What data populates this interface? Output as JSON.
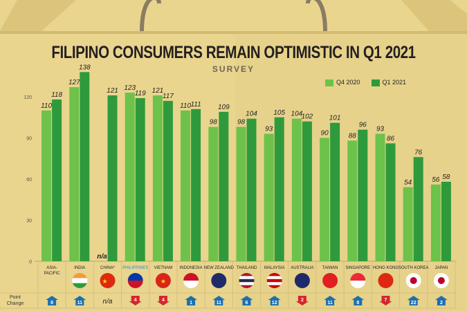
{
  "title": "FILIPINO CONSUMERS REMAIN OPTIMISTIC IN Q1 2021",
  "subtitle": "SURVEY",
  "point_change_label": "Point Change",
  "colors": {
    "q4_2020": "#6cc24a",
    "q1_2021": "#2e9a3c",
    "up": "#1e6fae",
    "down": "#d7262b",
    "background": "#e9d58e",
    "highlight_label": "#2a8fc9"
  },
  "chart_data": {
    "type": "bar",
    "title": "FILIPINO CONSUMERS REMAIN OPTIMISTIC IN Q1 2021",
    "subtitle": "SURVEY",
    "categories": [
      "ASIA-PACIFIC",
      "INDIA",
      "CHINA*",
      "PHILIPPINES",
      "VIETNAM",
      "INDONESIA",
      "NEW ZEALAND",
      "THAILAND",
      "MALAYSIA",
      "AUSTRALIA",
      "TAIWAN",
      "SINGAPORE",
      "HONG KONG",
      "SOUTH KOREA",
      "JAPAN"
    ],
    "series": [
      {
        "name": "Q4 2020",
        "values": [
          110,
          127,
          null,
          123,
          121,
          110,
          98,
          98,
          93,
          104,
          90,
          88,
          93,
          54,
          56
        ]
      },
      {
        "name": "Q1 2021",
        "values": [
          118,
          138,
          121,
          119,
          117,
          111,
          109,
          104,
          105,
          102,
          101,
          96,
          86,
          76,
          58
        ]
      }
    ],
    "missing_label": "n/a",
    "yticks": [
      0,
      30,
      60,
      90,
      120
    ],
    "ylim": [
      0,
      140
    ],
    "grid": false,
    "legend": "top-right",
    "highlight_category": "PHILIPPINES",
    "point_change": [
      {
        "value": "8",
        "direction": "up"
      },
      {
        "value": "11",
        "direction": "up"
      },
      {
        "value": "n/a",
        "direction": "none"
      },
      {
        "value": "4",
        "direction": "down"
      },
      {
        "value": "4",
        "direction": "down"
      },
      {
        "value": "1",
        "direction": "up"
      },
      {
        "value": "11",
        "direction": "up"
      },
      {
        "value": "6",
        "direction": "up"
      },
      {
        "value": "12",
        "direction": "up"
      },
      {
        "value": "2",
        "direction": "down"
      },
      {
        "value": "11",
        "direction": "up"
      },
      {
        "value": "8",
        "direction": "up"
      },
      {
        "value": "7",
        "direction": "down"
      },
      {
        "value": "22",
        "direction": "up"
      },
      {
        "value": "2",
        "direction": "up"
      }
    ],
    "flags": [
      "none",
      "india-flag",
      "china-flag",
      "philippines-flag",
      "vietnam-flag",
      "indonesia-flag",
      "new-zealand-flag",
      "thailand-flag",
      "malaysia-flag",
      "australia-flag",
      "taiwan-flag",
      "singapore-flag",
      "hong-kong-flag",
      "south-korea-flag",
      "japan-flag"
    ]
  }
}
